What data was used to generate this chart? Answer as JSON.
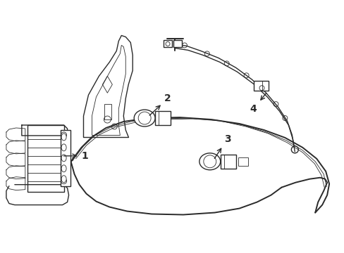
{
  "background_color": "#ffffff",
  "line_color": "#2a2a2a",
  "lw": 1.0,
  "lw_thin": 0.6,
  "lw_thick": 1.4,
  "figsize": [
    4.89,
    3.6
  ],
  "dpi": 100
}
